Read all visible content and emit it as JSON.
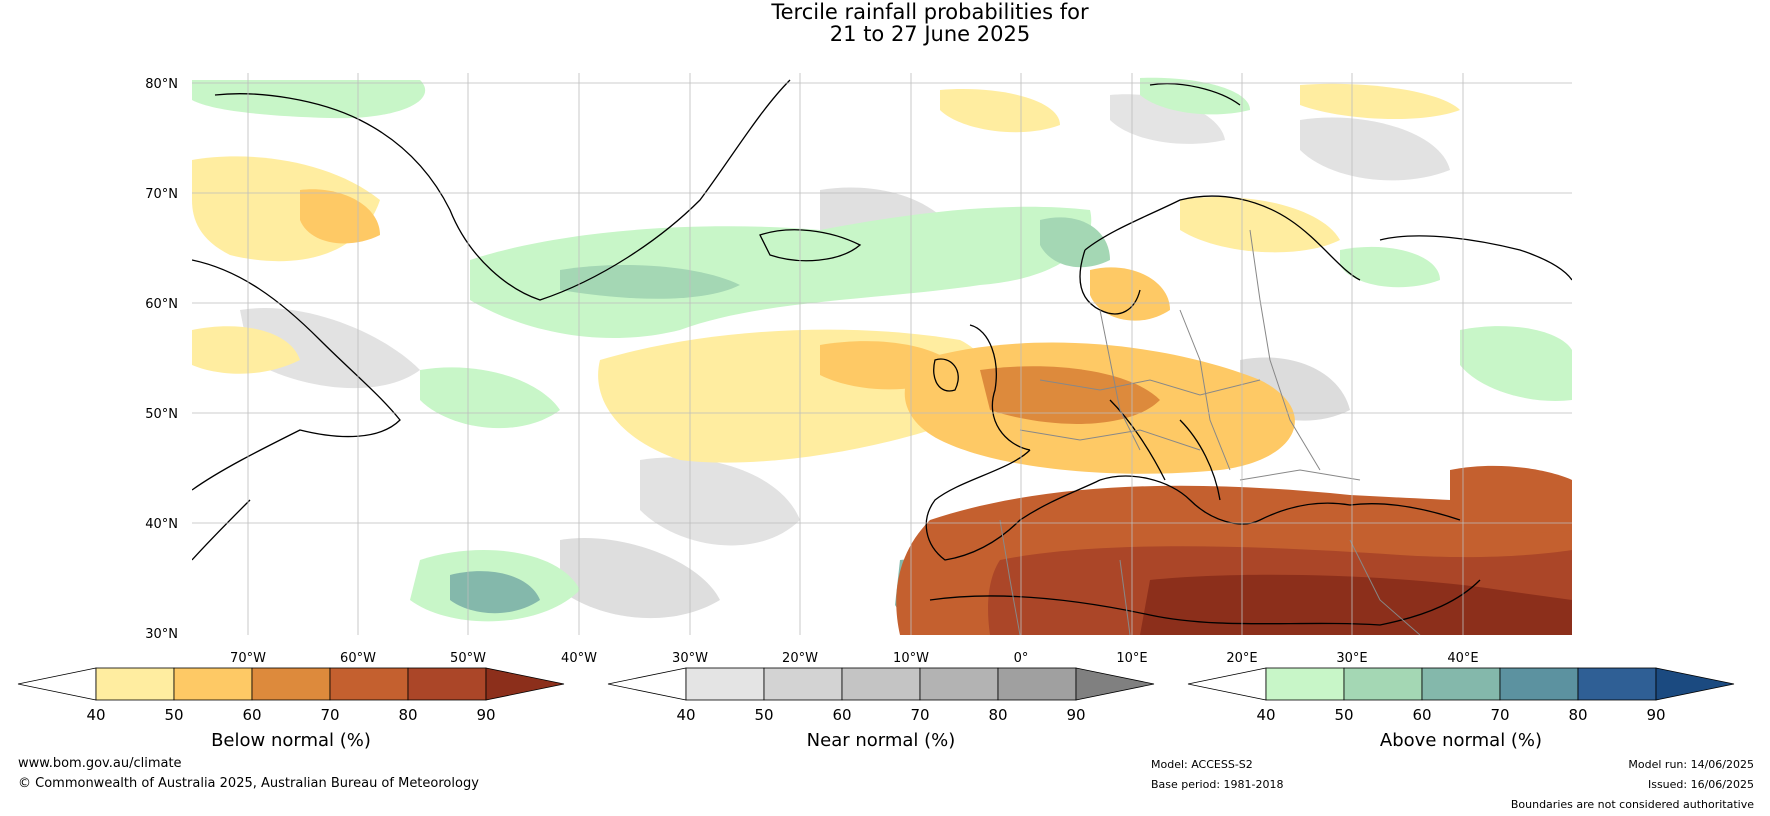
{
  "title": {
    "line1": "Tercile rainfall probabilities for",
    "line2": "21 to 27 June 2025"
  },
  "map": {
    "lat_labels": [
      "80°N",
      "70°N",
      "60°N",
      "50°N",
      "40°N",
      "30°N"
    ],
    "lon_labels": [
      "70°W",
      "60°W",
      "50°W",
      "40°W",
      "30°W",
      "20°W",
      "10°W",
      "0°",
      "10°E",
      "20°E",
      "30°E",
      "40°E"
    ]
  },
  "legends": [
    {
      "id": "below",
      "label": "Below normal (%)",
      "ticks": [
        "40",
        "50",
        "60",
        "70",
        "80",
        "90"
      ],
      "colors": [
        "#ffffff",
        "#ffeda0",
        "#fec965",
        "#dd8a3c",
        "#c4602f",
        "#ab4628",
        "#8c2f1b"
      ]
    },
    {
      "id": "near",
      "label": "Near normal (%)",
      "ticks": [
        "40",
        "50",
        "60",
        "70",
        "80",
        "90"
      ],
      "colors": [
        "#ffffff",
        "#e4e4e4",
        "#d3d3d3",
        "#c4c4c4",
        "#b3b3b3",
        "#a0a0a0",
        "#808080"
      ]
    },
    {
      "id": "above",
      "label": "Above normal (%)",
      "ticks": [
        "40",
        "50",
        "60",
        "70",
        "80",
        "90"
      ],
      "colors": [
        "#ffffff",
        "#c8f6c8",
        "#a4d7b4",
        "#84b8ab",
        "#5c92a0",
        "#2f5f95",
        "#1b4a80"
      ]
    }
  ],
  "footer": {
    "website": "www.bom.gov.au/climate",
    "copyright": "© Commonwealth of Australia 2025, Australian Bureau of Meteorology",
    "model": "Model: ACCESS-S2",
    "base_period": "Base period: 1981-2018",
    "model_run": "Model run: 14/06/2025",
    "issued": "Issued: 16/06/2025",
    "disclaimer": "Boundaries are not considered authoritative"
  }
}
